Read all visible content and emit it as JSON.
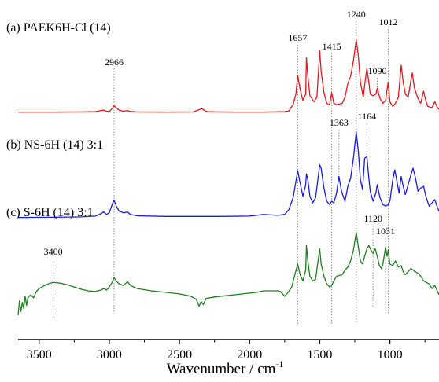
{
  "chart_data": {
    "type": "line",
    "title": "",
    "xlabel": "Wavenumber / cm",
    "xlabel_superscript": "-1",
    "x_reversed": true,
    "xlim": [
      3650,
      650
    ],
    "xticks": [
      3500,
      3000,
      2500,
      2000,
      1500,
      1000
    ],
    "y_ticks_shown": false,
    "grid": false,
    "legend": "none",
    "series": [
      {
        "name": "(a) PAEK6H-Cl (14)",
        "color": "#e8141e",
        "points": [
          [
            3650,
            0.02
          ],
          [
            3400,
            0.02
          ],
          [
            3200,
            0.03
          ],
          [
            3100,
            0.05
          ],
          [
            3060,
            0.12
          ],
          [
            3040,
            0.15
          ],
          [
            3020,
            0.08
          ],
          [
            3000,
            0.06
          ],
          [
            2980,
            0.25
          ],
          [
            2966,
            0.45
          ],
          [
            2950,
            0.3
          ],
          [
            2930,
            0.15
          ],
          [
            2900,
            0.08
          ],
          [
            2870,
            0.12
          ],
          [
            2850,
            0.06
          ],
          [
            2800,
            0.03
          ],
          [
            2600,
            0.02
          ],
          [
            2400,
            0.03
          ],
          [
            2360,
            0.18
          ],
          [
            2340,
            0.25
          ],
          [
            2320,
            0.12
          ],
          [
            2300,
            0.04
          ],
          [
            2100,
            0.02
          ],
          [
            1900,
            0.02
          ],
          [
            1750,
            0.05
          ],
          [
            1720,
            0.1
          ],
          [
            1690,
            0.5
          ],
          [
            1670,
            1.2
          ],
          [
            1657,
            2.45
          ],
          [
            1640,
            1.5
          ],
          [
            1620,
            0.8
          ],
          [
            1600,
            1.2
          ],
          [
            1595,
            3.6
          ],
          [
            1585,
            2.4
          ],
          [
            1570,
            1.1
          ],
          [
            1540,
            0.7
          ],
          [
            1520,
            1.0
          ],
          [
            1500,
            4.05
          ],
          [
            1490,
            2.7
          ],
          [
            1470,
            1.3
          ],
          [
            1450,
            0.6
          ],
          [
            1430,
            0.5
          ],
          [
            1415,
            1.3
          ],
          [
            1400,
            0.6
          ],
          [
            1380,
            0.5
          ],
          [
            1340,
            0.6
          ],
          [
            1320,
            1.0
          ],
          [
            1300,
            1.9
          ],
          [
            1280,
            2.4
          ],
          [
            1260,
            3.4
          ],
          [
            1240,
            4.8
          ],
          [
            1225,
            3.7
          ],
          [
            1210,
            2.0
          ],
          [
            1190,
            1.0
          ],
          [
            1180,
            1.8
          ],
          [
            1164,
            2.9
          ],
          [
            1150,
            2.0
          ],
          [
            1140,
            1.2
          ],
          [
            1120,
            1.1
          ],
          [
            1100,
            1.2
          ],
          [
            1090,
            1.6
          ],
          [
            1070,
            0.9
          ],
          [
            1050,
            0.6
          ],
          [
            1031,
            0.8
          ],
          [
            1012,
            2.0
          ],
          [
            1000,
            0.7
          ],
          [
            980,
            0.4
          ],
          [
            960,
            0.6
          ],
          [
            940,
            1.0
          ],
          [
            920,
            3.1
          ],
          [
            905,
            2.0
          ],
          [
            890,
            1.2
          ],
          [
            870,
            1.0
          ],
          [
            850,
            2.1
          ],
          [
            840,
            2.6
          ],
          [
            825,
            1.6
          ],
          [
            800,
            0.9
          ],
          [
            780,
            0.6
          ],
          [
            760,
            1.4
          ],
          [
            745,
            0.8
          ],
          [
            730,
            0.4
          ],
          [
            700,
            0.3
          ],
          [
            680,
            0.7
          ],
          [
            660,
            0.3
          ],
          [
            650,
            0.2
          ]
        ]
      },
      {
        "name": "(b) NS-6H (14) 3:1",
        "color": "#1a1ae6",
        "points": [
          [
            3650,
            0.02
          ],
          [
            3400,
            0.03
          ],
          [
            3200,
            0.05
          ],
          [
            3100,
            0.1
          ],
          [
            3060,
            0.25
          ],
          [
            3040,
            0.35
          ],
          [
            3020,
            0.2
          ],
          [
            3000,
            0.3
          ],
          [
            2980,
            0.8
          ],
          [
            2966,
            1.05
          ],
          [
            2950,
            0.7
          ],
          [
            2930,
            0.4
          ],
          [
            2900,
            0.3
          ],
          [
            2870,
            0.35
          ],
          [
            2850,
            0.2
          ],
          [
            2800,
            0.12
          ],
          [
            2600,
            0.08
          ],
          [
            2400,
            0.08
          ],
          [
            2200,
            0.08
          ],
          [
            2000,
            0.1
          ],
          [
            1900,
            0.2
          ],
          [
            1800,
            0.15
          ],
          [
            1750,
            0.2
          ],
          [
            1720,
            0.5
          ],
          [
            1690,
            1.2
          ],
          [
            1670,
            2.2
          ],
          [
            1657,
            2.85
          ],
          [
            1640,
            2.1
          ],
          [
            1620,
            1.3
          ],
          [
            1600,
            2.0
          ],
          [
            1595,
            2.65
          ],
          [
            1585,
            2.3
          ],
          [
            1570,
            1.3
          ],
          [
            1550,
            0.9
          ],
          [
            1530,
            1.2
          ],
          [
            1500,
            3.2
          ],
          [
            1490,
            3.0
          ],
          [
            1470,
            1.8
          ],
          [
            1450,
            1.0
          ],
          [
            1430,
            0.8
          ],
          [
            1415,
            1.0
          ],
          [
            1400,
            0.9
          ],
          [
            1380,
            1.5
          ],
          [
            1363,
            2.5
          ],
          [
            1345,
            1.6
          ],
          [
            1320,
            1.0
          ],
          [
            1300,
            1.9
          ],
          [
            1280,
            2.4
          ],
          [
            1260,
            3.6
          ],
          [
            1240,
            5.2
          ],
          [
            1225,
            4.0
          ],
          [
            1210,
            2.3
          ],
          [
            1195,
            1.7
          ],
          [
            1180,
            3.6
          ],
          [
            1164,
            3.7
          ],
          [
            1150,
            2.4
          ],
          [
            1140,
            1.6
          ],
          [
            1120,
            1.0
          ],
          [
            1100,
            1.5
          ],
          [
            1090,
            2.0
          ],
          [
            1070,
            1.2
          ],
          [
            1050,
            0.8
          ],
          [
            1031,
            0.7
          ],
          [
            1012,
            0.8
          ],
          [
            1000,
            1.0
          ],
          [
            980,
            2.3
          ],
          [
            965,
            2.9
          ],
          [
            950,
            2.2
          ],
          [
            935,
            1.5
          ],
          [
            920,
            2.5
          ],
          [
            905,
            1.9
          ],
          [
            890,
            1.4
          ],
          [
            870,
            2.0
          ],
          [
            850,
            2.6
          ],
          [
            835,
            3.0
          ],
          [
            820,
            2.5
          ],
          [
            800,
            1.6
          ],
          [
            780,
            1.8
          ],
          [
            760,
            1.9
          ],
          [
            740,
            1.2
          ],
          [
            720,
            0.7
          ],
          [
            700,
            0.9
          ],
          [
            680,
            1.1
          ],
          [
            660,
            0.6
          ],
          [
            650,
            0.4
          ]
        ]
      },
      {
        "name": "(c) S-6H (14) 3:1",
        "color": "#1f7f1f",
        "points": [
          [
            3650,
            0.35
          ],
          [
            3640,
            1.3
          ],
          [
            3630,
            0.6
          ],
          [
            3620,
            1.2
          ],
          [
            3610,
            0.8
          ],
          [
            3600,
            1.6
          ],
          [
            3590,
            1.0
          ],
          [
            3580,
            1.5
          ],
          [
            3560,
            1.7
          ],
          [
            3540,
            1.5
          ],
          [
            3520,
            1.9
          ],
          [
            3500,
            2.1
          ],
          [
            3480,
            2.2
          ],
          [
            3450,
            2.35
          ],
          [
            3420,
            2.45
          ],
          [
            3400,
            2.5
          ],
          [
            3380,
            2.48
          ],
          [
            3350,
            2.45
          ],
          [
            3300,
            2.35
          ],
          [
            3250,
            2.2
          ],
          [
            3200,
            2.05
          ],
          [
            3150,
            1.95
          ],
          [
            3100,
            1.9
          ],
          [
            3060,
            2.0
          ],
          [
            3040,
            2.1
          ],
          [
            3020,
            2.0
          ],
          [
            3000,
            2.2
          ],
          [
            2980,
            2.5
          ],
          [
            2966,
            2.8
          ],
          [
            2950,
            2.6
          ],
          [
            2930,
            2.4
          ],
          [
            2900,
            2.3
          ],
          [
            2870,
            2.55
          ],
          [
            2850,
            2.3
          ],
          [
            2800,
            2.1
          ],
          [
            2700,
            1.95
          ],
          [
            2600,
            1.85
          ],
          [
            2500,
            1.75
          ],
          [
            2420,
            1.6
          ],
          [
            2380,
            1.4
          ],
          [
            2360,
            0.95
          ],
          [
            2345,
            1.25
          ],
          [
            2330,
            1.05
          ],
          [
            2310,
            1.45
          ],
          [
            2250,
            1.55
          ],
          [
            2200,
            1.6
          ],
          [
            2100,
            1.7
          ],
          [
            2000,
            1.8
          ],
          [
            1950,
            1.85
          ],
          [
            1900,
            1.95
          ],
          [
            1850,
            1.95
          ],
          [
            1800,
            1.95
          ],
          [
            1780,
            1.9
          ],
          [
            1760,
            1.7
          ],
          [
            1750,
            1.6
          ],
          [
            1730,
            1.8
          ],
          [
            1700,
            2.2
          ],
          [
            1680,
            2.9
          ],
          [
            1657,
            3.7
          ],
          [
            1640,
            3.0
          ],
          [
            1620,
            2.6
          ],
          [
            1600,
            3.3
          ],
          [
            1595,
            4.9
          ],
          [
            1585,
            3.9
          ],
          [
            1570,
            2.9
          ],
          [
            1550,
            2.6
          ],
          [
            1530,
            2.7
          ],
          [
            1500,
            4.7
          ],
          [
            1490,
            3.7
          ],
          [
            1470,
            2.9
          ],
          [
            1450,
            2.4
          ],
          [
            1430,
            2.2
          ],
          [
            1415,
            2.3
          ],
          [
            1400,
            2.6
          ],
          [
            1380,
            2.9
          ],
          [
            1360,
            2.95
          ],
          [
            1340,
            3.0
          ],
          [
            1320,
            3.3
          ],
          [
            1300,
            3.5
          ],
          [
            1280,
            3.9
          ],
          [
            1260,
            4.6
          ],
          [
            1240,
            5.75
          ],
          [
            1225,
            4.8
          ],
          [
            1210,
            3.9
          ],
          [
            1195,
            3.7
          ],
          [
            1180,
            4.2
          ],
          [
            1164,
            4.7
          ],
          [
            1150,
            4.9
          ],
          [
            1135,
            4.6
          ],
          [
            1120,
            4.4
          ],
          [
            1105,
            4.7
          ],
          [
            1090,
            4.2
          ],
          [
            1075,
            3.6
          ],
          [
            1060,
            3.4
          ],
          [
            1050,
            3.7
          ],
          [
            1031,
            4.8
          ],
          [
            1020,
            4.2
          ],
          [
            1012,
            4.6
          ],
          [
            1000,
            3.7
          ],
          [
            980,
            3.6
          ],
          [
            960,
            3.9
          ],
          [
            940,
            3.5
          ],
          [
            920,
            3.6
          ],
          [
            905,
            3.2
          ],
          [
            890,
            3.0
          ],
          [
            870,
            3.2
          ],
          [
            850,
            3.4
          ],
          [
            835,
            3.3
          ],
          [
            820,
            3.2
          ],
          [
            800,
            3.1
          ],
          [
            780,
            2.9
          ],
          [
            760,
            2.6
          ],
          [
            740,
            2.5
          ],
          [
            720,
            2.4
          ],
          [
            700,
            2.1
          ],
          [
            680,
            2.3
          ],
          [
            660,
            1.9
          ],
          [
            650,
            1.7
          ]
        ]
      }
    ],
    "annotations": [
      {
        "label": "2966",
        "x": 2966
      },
      {
        "label": "1657",
        "x": 1657
      },
      {
        "label": "1415",
        "x": 1415
      },
      {
        "label": "1240",
        "x": 1240
      },
      {
        "label": "1090",
        "x": 1090
      },
      {
        "label": "1012",
        "x": 1012
      },
      {
        "label": "1363",
        "x": 1363
      },
      {
        "label": "1164",
        "x": 1164
      },
      {
        "label": "1120",
        "x": 1120
      },
      {
        "label": "1031",
        "x": 1031
      },
      {
        "label": "3400",
        "x": 3400
      }
    ]
  }
}
